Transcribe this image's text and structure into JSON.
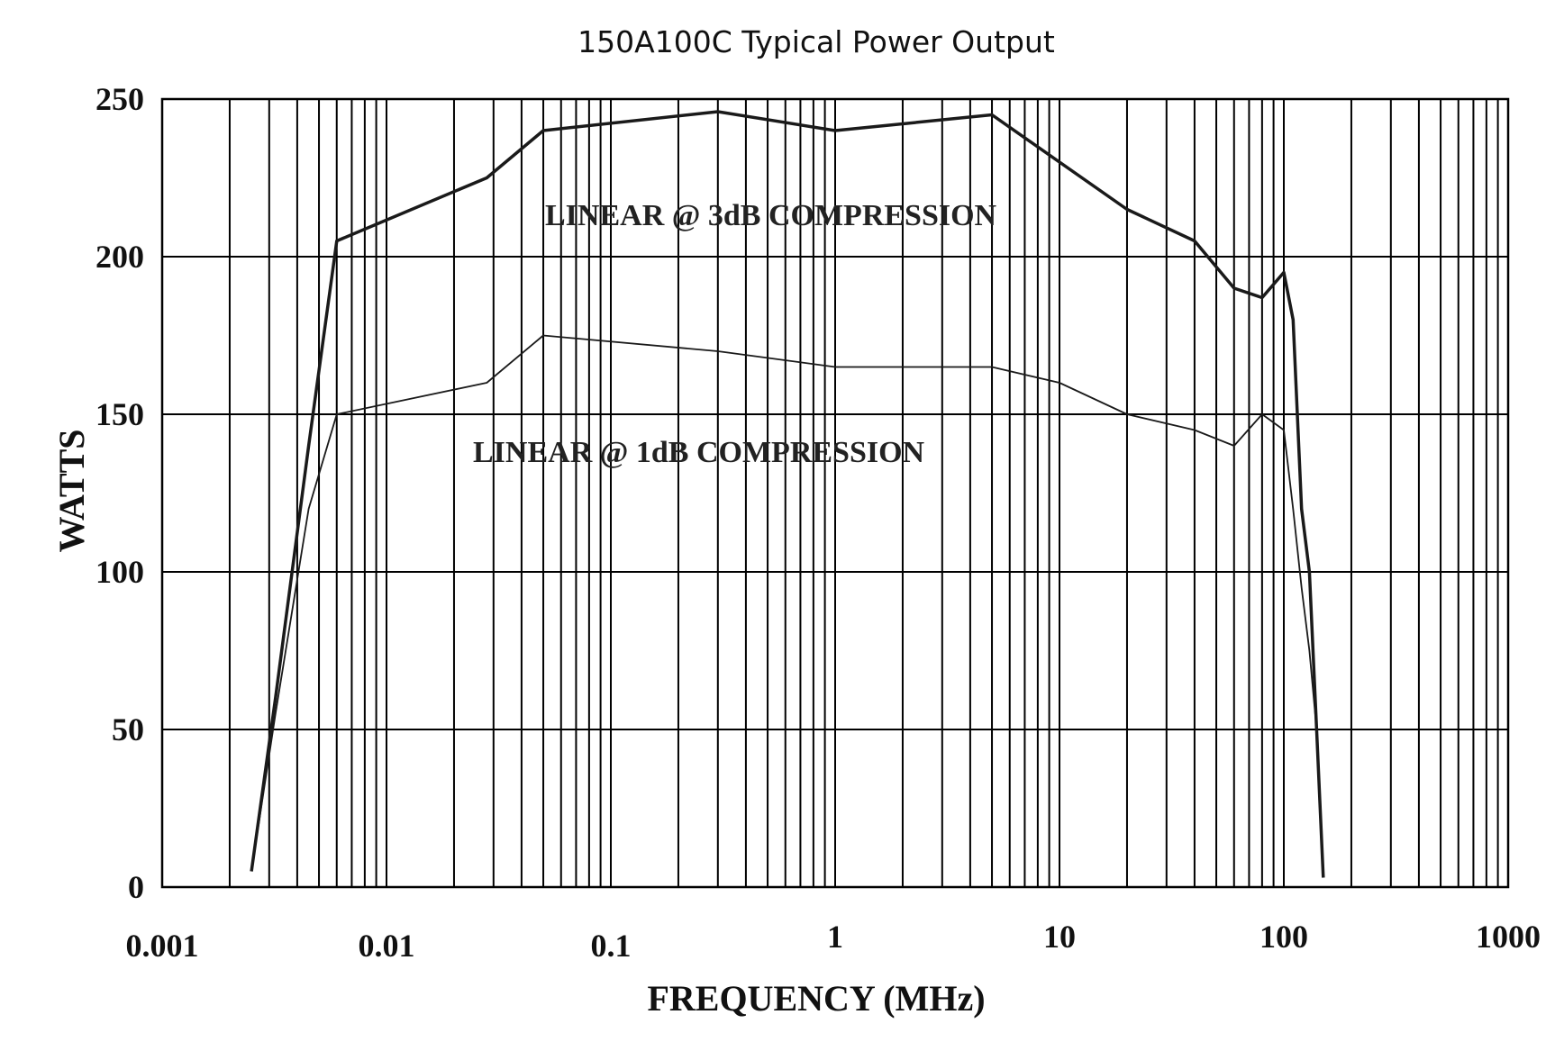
{
  "chart_data": {
    "type": "line",
    "title": "150A100C Typical Power Output",
    "xlabel": "FREQUENCY (MHz)",
    "ylabel": "WATTS",
    "x_scale": "log",
    "xlim": [
      0.001,
      1000
    ],
    "ylim": [
      0,
      250
    ],
    "grid": true,
    "x_ticks": [
      "0.001",
      "0.01",
      "0.1",
      "1",
      "10",
      "100",
      "1000"
    ],
    "y_ticks": [
      "0",
      "50",
      "100",
      "150",
      "200",
      "250"
    ],
    "annotations": [
      {
        "text": "LINEAR @ 3dB COMPRESSION",
        "series": 0
      },
      {
        "text": "LINEAR @ 1dB COMPRESSION",
        "series": 1
      }
    ],
    "colors": {
      "line": "#1a1a1a",
      "grid": "#000000",
      "text": "#111111"
    },
    "series": [
      {
        "x": [
          0.0025,
          0.0032,
          0.0045,
          0.006,
          0.028,
          0.05,
          0.3,
          1,
          5,
          20,
          40,
          60,
          80,
          100,
          110,
          120,
          130,
          140,
          150
        ],
        "y": [
          5,
          60,
          140,
          205,
          225,
          240,
          246,
          240,
          245,
          215,
          205,
          190,
          187,
          195,
          180,
          120,
          100,
          50,
          3
        ]
      },
      {
        "x": [
          0.0025,
          0.0032,
          0.0045,
          0.006,
          0.028,
          0.05,
          0.3,
          1,
          5,
          10,
          20,
          40,
          60,
          80,
          100,
          110,
          120,
          130,
          140,
          150
        ],
        "y": [
          5,
          55,
          120,
          150,
          160,
          175,
          170,
          165,
          165,
          160,
          150,
          145,
          140,
          150,
          145,
          120,
          95,
          75,
          50,
          3
        ]
      }
    ]
  }
}
